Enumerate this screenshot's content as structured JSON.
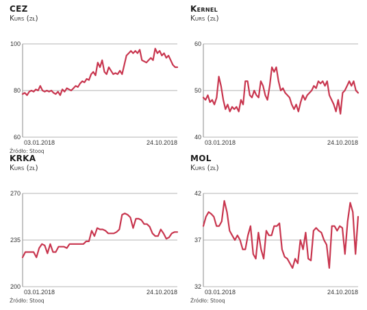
{
  "charts": [
    {
      "title": "CEZ",
      "subtitle": "Kurs (zł)",
      "source": "Źródło: Stooq"
    },
    {
      "title": "Kernel",
      "subtitle": "Kurs (zł)",
      "source": "Źródło: Stooq"
    },
    {
      "title": "KRKA",
      "subtitle": "Kurs (zł)",
      "source": "Źródło: Stooq"
    },
    {
      "title": "MOL",
      "subtitle": "Kurs (zł)",
      "source": "Źródło: Stooq"
    }
  ],
  "colors": {
    "line": "#c8354e",
    "axis": "#888888",
    "grid": "#9a9a9a"
  },
  "chart_data": [
    {
      "type": "line",
      "title": "CEZ",
      "ylabel": "Kurs (zł)",
      "ylim": [
        60,
        100
      ],
      "yticks": [
        "100",
        "80",
        "60"
      ],
      "xticks": [
        "03.01.2018",
        "24.10.2018"
      ],
      "series": [
        {
          "values": [
            78.5,
            79,
            78,
            79.5,
            80,
            79.5,
            80.5,
            80,
            82,
            80,
            79.5,
            80,
            79.5,
            80,
            79,
            78.5,
            79.5,
            78,
            80.5,
            79.5,
            81,
            80.5,
            80,
            81,
            82,
            81.5,
            83,
            84,
            83.5,
            85,
            84.5,
            87,
            88,
            86.5,
            92,
            90,
            93,
            88,
            87,
            90,
            88.5,
            87,
            87.5,
            87,
            88.5,
            87,
            91,
            95,
            96,
            97,
            96,
            97,
            96,
            97.5,
            93,
            92.5,
            92,
            93,
            94,
            93,
            98,
            96,
            97,
            95,
            96,
            94,
            95,
            93,
            91,
            90,
            90
          ]
        }
      ]
    },
    {
      "type": "line",
      "title": "Kernel",
      "ylabel": "Kurs (zł)",
      "ylim": [
        40,
        60
      ],
      "yticks": [
        "60",
        "50",
        "40"
      ],
      "xticks": [
        "03.01.2018",
        "24.10.2018"
      ],
      "series": [
        {
          "values": [
            48.5,
            48,
            49,
            47.5,
            48,
            47,
            48.5,
            53,
            51,
            48,
            46,
            47,
            45.5,
            46.5,
            46,
            46.5,
            45.5,
            48,
            47,
            52,
            52,
            49,
            48.5,
            50,
            49,
            48.5,
            52,
            51,
            49,
            48,
            51,
            55,
            54,
            55,
            52,
            50,
            50.5,
            49.5,
            49,
            48.5,
            47,
            46,
            47,
            45.5,
            47.5,
            49,
            48,
            49,
            49.5,
            50,
            51,
            50.5,
            52,
            51.5,
            52,
            51,
            52,
            49,
            48,
            47,
            45.5,
            48,
            45,
            49.5,
            50,
            51,
            52,
            51,
            52,
            50,
            49.5
          ]
        }
      ]
    },
    {
      "type": "line",
      "title": "KRKA",
      "ylabel": "Kurs (zł)",
      "ylim": [
        200,
        270
      ],
      "yticks": [
        "270",
        "235",
        "200"
      ],
      "xticks": [
        "03.01.2018",
        "24.10.2018"
      ],
      "series": [
        {
          "values": [
            222,
            226,
            226,
            226,
            226,
            222,
            229,
            232,
            231,
            225,
            232,
            226,
            226,
            230,
            230,
            230,
            229,
            232,
            232,
            232,
            232,
            232,
            232,
            234,
            234,
            242,
            238,
            244,
            243,
            243,
            242,
            240,
            240,
            240,
            241,
            243,
            254,
            255,
            254,
            252,
            244,
            251,
            251,
            250,
            247,
            247,
            245,
            240,
            238,
            238,
            243,
            240,
            236,
            237,
            240,
            241,
            241
          ]
        }
      ]
    },
    {
      "type": "line",
      "title": "MOL",
      "ylabel": "Kurs (zł)",
      "ylim": [
        32,
        42
      ],
      "yticks": [
        "42",
        "37",
        "32"
      ],
      "xticks": [
        "03.01.2018",
        "24.10.2018"
      ],
      "series": [
        {
          "values": [
            38.5,
            39.5,
            40,
            39.8,
            39.5,
            38.5,
            38.5,
            39,
            41.2,
            40,
            38,
            37.5,
            37,
            37.5,
            37,
            36,
            36,
            37.5,
            38.5,
            35.5,
            35,
            37.8,
            36,
            35,
            38,
            37.5,
            37.5,
            38.5,
            38.5,
            38.8,
            36,
            35.2,
            35,
            34.5,
            34,
            35,
            34.5,
            37,
            36,
            37.8,
            35,
            34.8,
            38,
            38.3,
            38,
            37.8,
            37,
            36.5,
            34,
            38.5,
            38.5,
            38,
            38.5,
            38.3,
            35.5,
            39,
            41,
            40,
            35.5,
            39.5
          ]
        }
      ]
    }
  ]
}
